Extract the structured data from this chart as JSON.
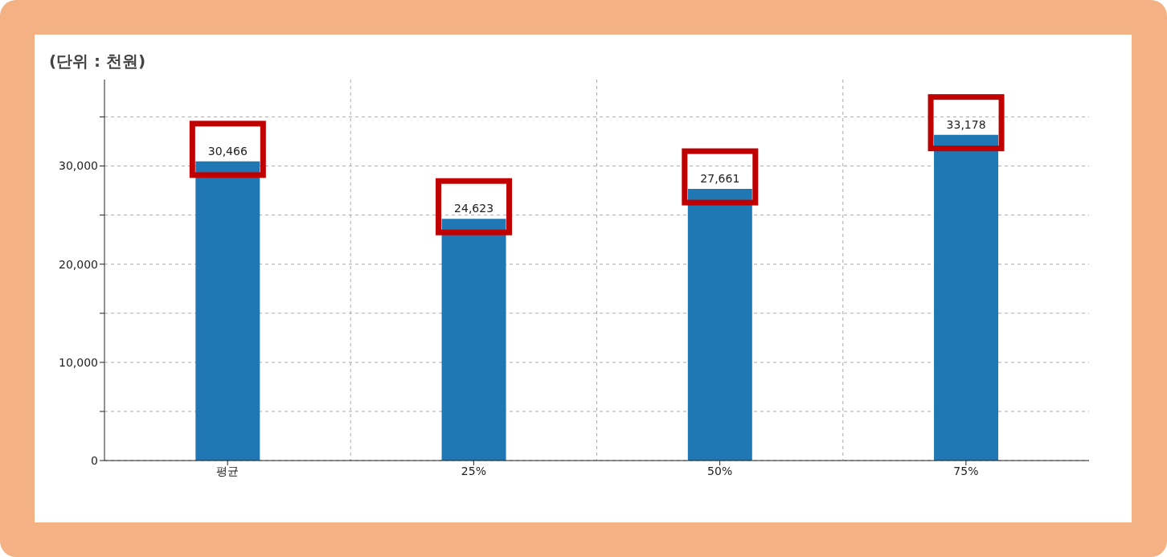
{
  "chart_data": {
    "type": "bar",
    "ylabel": "(단위 : 천원)",
    "categories": [
      "평균",
      "25%",
      "50%",
      "75%"
    ],
    "values": [
      30466,
      24623,
      27661,
      33178
    ],
    "value_labels": [
      "30,466",
      "24,623",
      "27,661",
      "33,178"
    ],
    "color": "#1f77b4",
    "grid": true,
    "legend": false,
    "ylim": [
      0,
      38800
    ],
    "yticks": [
      0,
      {
        "value": 5000,
        "label": null
      },
      {
        "value": 10000,
        "label": "10,000"
      },
      {
        "value": 15000,
        "label": null
      },
      {
        "value": 20000,
        "label": "20,000"
      },
      {
        "value": 25000,
        "label": null
      },
      {
        "value": 30000,
        "label": "30,000"
      },
      {
        "value": 35000,
        "label": null
      }
    ]
  }
}
